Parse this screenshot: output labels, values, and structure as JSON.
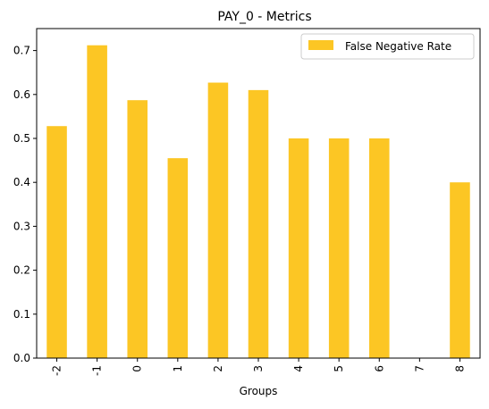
{
  "chart_data": {
    "type": "bar",
    "title": "PAY_0 - Metrics",
    "xlabel": "Groups",
    "ylabel": "",
    "categories": [
      "-2",
      "-1",
      "0",
      "1",
      "2",
      "3",
      "4",
      "5",
      "6",
      "7",
      "8"
    ],
    "series": [
      {
        "name": "False Negative Rate",
        "values": [
          0.528,
          0.712,
          0.587,
          0.455,
          0.627,
          0.61,
          0.5,
          0.5,
          0.5,
          0.0,
          0.4
        ],
        "color": "#FCC624"
      }
    ],
    "ylim": [
      0,
      0.75
    ],
    "yticks": [
      "0.0",
      "0.1",
      "0.2",
      "0.3",
      "0.4",
      "0.5",
      "0.6",
      "0.7"
    ],
    "legend": "top-right",
    "grid": false
  }
}
